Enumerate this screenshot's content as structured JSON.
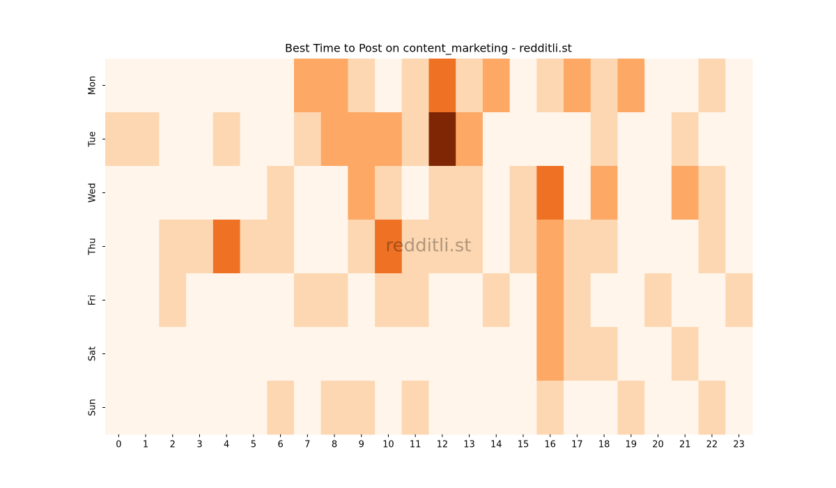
{
  "chart_data": {
    "type": "heatmap",
    "title": "Best Time to Post on content_marketing - redditli.st",
    "watermark": "redditli.st",
    "x": [
      "0",
      "1",
      "2",
      "3",
      "4",
      "5",
      "6",
      "7",
      "8",
      "9",
      "10",
      "11",
      "12",
      "13",
      "14",
      "15",
      "16",
      "17",
      "18",
      "19",
      "20",
      "21",
      "22",
      "23"
    ],
    "y": [
      "Mon",
      "Tue",
      "Wed",
      "Thu",
      "Fri",
      "Sat",
      "Sun"
    ],
    "values": [
      [
        0,
        0,
        0,
        0,
        0,
        0,
        0,
        2,
        2,
        1,
        0,
        1,
        3,
        1,
        2,
        0,
        1,
        2,
        1,
        2,
        0,
        0,
        1,
        0
      ],
      [
        1,
        1,
        0,
        0,
        1,
        0,
        0,
        1,
        2,
        2,
        2,
        1,
        5,
        2,
        0,
        0,
        0,
        0,
        1,
        0,
        0,
        1,
        0,
        0
      ],
      [
        0,
        0,
        0,
        0,
        0,
        0,
        1,
        0,
        0,
        2,
        1,
        0,
        1,
        1,
        0,
        1,
        3,
        0,
        2,
        0,
        0,
        2,
        1,
        0
      ],
      [
        0,
        0,
        1,
        1,
        3,
        1,
        1,
        0,
        0,
        1,
        3,
        1,
        1,
        1,
        0,
        1,
        2,
        1,
        1,
        0,
        0,
        0,
        1,
        0
      ],
      [
        0,
        0,
        1,
        0,
        0,
        0,
        0,
        1,
        1,
        0,
        1,
        1,
        0,
        0,
        1,
        0,
        2,
        1,
        0,
        0,
        1,
        0,
        0,
        1
      ],
      [
        0,
        0,
        0,
        0,
        0,
        0,
        0,
        0,
        0,
        0,
        0,
        0,
        0,
        0,
        0,
        0,
        2,
        1,
        1,
        0,
        0,
        1,
        0,
        0
      ],
      [
        0,
        0,
        0,
        0,
        0,
        0,
        1,
        0,
        1,
        1,
        0,
        1,
        0,
        0,
        0,
        0,
        1,
        0,
        0,
        1,
        0,
        0,
        1,
        0
      ]
    ],
    "zlim": [
      0,
      5
    ],
    "colormap": [
      "#fff5eb",
      "#fdd0a2",
      "#fd8d3c",
      "#d94801",
      "#7f2704"
    ]
  }
}
